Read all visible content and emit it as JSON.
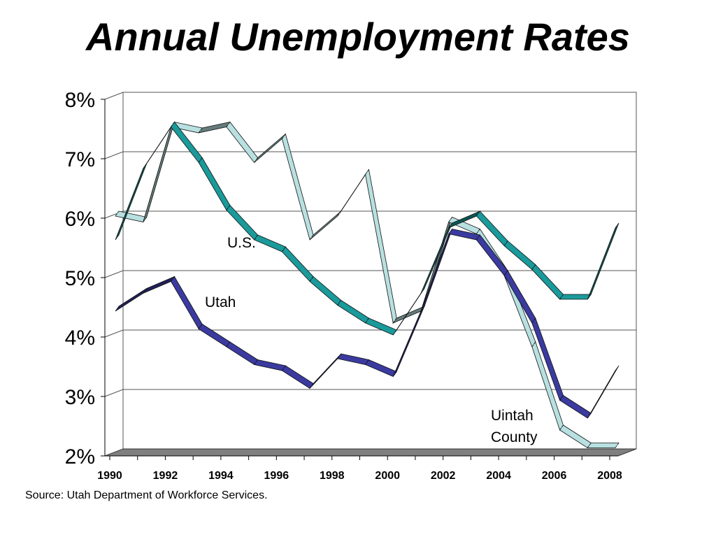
{
  "slide": {
    "title": "Annual Unemployment Rates",
    "source": "Source: Utah Department of Workforce Services."
  },
  "chart_data": {
    "type": "line",
    "title": "Annual Unemployment Rates",
    "xlabel": "",
    "ylabel": "",
    "x": [
      1990,
      1991,
      1992,
      1993,
      1994,
      1995,
      1996,
      1997,
      1998,
      1999,
      2000,
      2001,
      2002,
      2003,
      2004,
      2005,
      2006,
      2007,
      2008
    ],
    "x_tick_labels": [
      "1990",
      "1992",
      "1994",
      "1996",
      "1998",
      "2000",
      "2002",
      "2004",
      "2006",
      "2008"
    ],
    "y_tick_labels": [
      "2%",
      "3%",
      "4%",
      "5%",
      "6%",
      "7%",
      "8%"
    ],
    "ylim": [
      2,
      8
    ],
    "grid": true,
    "style": "3d-ribbon",
    "series": [
      {
        "name": "U.S.",
        "color": "#1a9a9a",
        "values": [
          5.6,
          6.8,
          7.5,
          6.9,
          6.1,
          5.6,
          5.4,
          4.9,
          4.5,
          4.2,
          4.0,
          4.7,
          5.8,
          6.0,
          5.5,
          5.1,
          4.6,
          4.6,
          5.8
        ]
      },
      {
        "name": "Utah",
        "color": "#3a3aa0",
        "values": [
          4.4,
          4.7,
          4.9,
          4.1,
          3.8,
          3.5,
          3.4,
          3.1,
          3.6,
          3.5,
          3.3,
          4.4,
          5.7,
          5.6,
          5.0,
          4.2,
          2.9,
          2.6,
          3.4
        ]
      },
      {
        "name": "Uintah County",
        "color": "#b8e0e0",
        "values": [
          6.0,
          5.9,
          7.5,
          7.4,
          7.5,
          6.9,
          7.3,
          5.6,
          6.0,
          6.7,
          4.2,
          4.4,
          5.9,
          5.7,
          5.0,
          3.8,
          2.4,
          2.1,
          2.1
        ]
      }
    ],
    "annotations": [
      {
        "text": "U.S.",
        "series": "U.S."
      },
      {
        "text": "Utah",
        "series": "Utah"
      },
      {
        "text": "Uintah",
        "series": "Uintah County"
      },
      {
        "text": "County",
        "series": "Uintah County"
      }
    ]
  }
}
